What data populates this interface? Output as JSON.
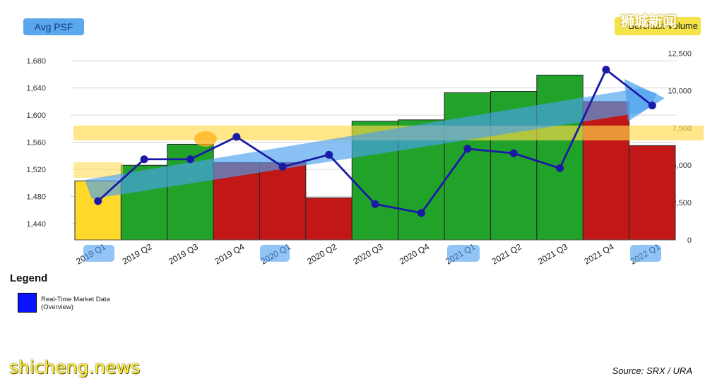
{
  "header": {
    "left_title": "Avg PSF",
    "right_title": "Burchast Volume",
    "brand": "狮城新闻"
  },
  "legend": {
    "title": "Legend",
    "item_label": "Real-Time Market Data (Overview)",
    "item_color": "#0a14ff"
  },
  "watermark": "shicheng.news",
  "source": "Source: SRX / URA",
  "colors": {
    "green": "#21a32a",
    "red": "#c11717",
    "yellow": "#ffd92a",
    "line": "#1a1aa6",
    "highlight_yellow": "#ffd94a",
    "highlight_blue": "#4a9ff0"
  },
  "chart_data": {
    "type": "bar",
    "categories": [
      "2019 Q1",
      "2019 Q2",
      "2019 Q3",
      "2019 Q4",
      "2020 Q1",
      "2020 Q2",
      "2020 Q3",
      "2020 Q4",
      "2021 Q1",
      "2021 Q2",
      "2021 Q3",
      "2021 Q4",
      "2022 Q1"
    ],
    "y_left": {
      "ticks": [
        1440,
        1480,
        1520,
        1560,
        1600,
        1640,
        1680
      ],
      "range": [
        1416,
        1700
      ]
    },
    "y_right": {
      "ticks": [
        "0",
        "2,500",
        "5,000",
        "7,500",
        "10,000",
        "12,500"
      ],
      "range": [
        0,
        12900
      ]
    },
    "series": [
      {
        "type": "bar",
        "axis": "left",
        "values": [
          1503,
          1526,
          1557,
          1530,
          1530,
          1478,
          1591,
          1593,
          1633,
          1635,
          1659,
          1620,
          1555
        ],
        "bar_colors": [
          "yellow",
          "green",
          "green",
          "red",
          "red",
          "red",
          "green",
          "green",
          "green",
          "green",
          "green",
          "red",
          "red"
        ]
      },
      {
        "type": "line",
        "axis": "right",
        "values": [
          2600,
          5400,
          5400,
          6900,
          4900,
          5700,
          2400,
          1800,
          6100,
          5800,
          4800,
          11400,
          9000
        ]
      }
    ],
    "grid": true
  }
}
